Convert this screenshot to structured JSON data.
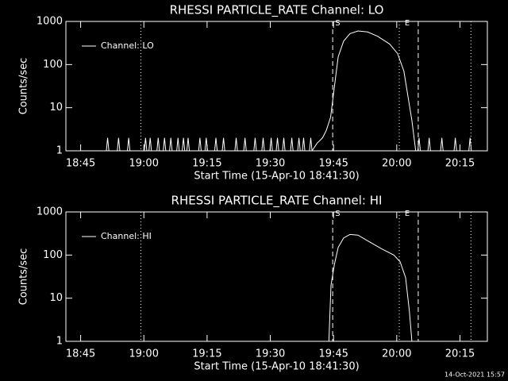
{
  "chart_data": [
    {
      "type": "line",
      "title": "RHESSI PARTICLE_RATE Channel: LO",
      "x_label": "Start Time (15-Apr-10 18:41:30)",
      "y_label": "Counts/sec",
      "x": [
        1121.5,
        1131.1,
        1131.4,
        1131.7,
        1133.7,
        1134,
        1134.3,
        1136.1,
        1136.4,
        1136.7,
        1140.1,
        1140.4,
        1140.7,
        1141.2,
        1141.5,
        1141.8,
        1143.1,
        1143.4,
        1143.7,
        1144.6,
        1144.9,
        1145.2,
        1146.1,
        1146.4,
        1146.7,
        1147.8,
        1148.1,
        1148.4,
        1149.1,
        1149.4,
        1149.7,
        1150.2,
        1150.5,
        1150.8,
        1153,
        1153.3,
        1153.6,
        1154.5,
        1154.8,
        1155.1,
        1156.8,
        1157.1,
        1157.4,
        1158.6,
        1158.9,
        1159.2,
        1161.6,
        1161.9,
        1162.2,
        1163.7,
        1164,
        1164.3,
        1166.1,
        1166.4,
        1166.7,
        1168,
        1168.3,
        1168.6,
        1169.9,
        1170.2,
        1170.5,
        1171.4,
        1171.7,
        1172,
        1172.9,
        1173.2,
        1173.5,
        1174.8,
        1175.1,
        1175.4,
        1176.5,
        1176.8,
        1177.1,
        1177.6,
        1177.9,
        1178.2,
        1179.3,
        1179.6,
        1179.9,
        1181.1,
        1182.4,
        1183.3,
        1184.3,
        1185.2,
        1186.1,
        1187.4,
        1188.9,
        1190.8,
        1193.1,
        1195.5,
        1198.3,
        1200.2,
        1201.7,
        1202.6,
        1203.6,
        1204.5,
        1205,
        1205.3,
        1205.6,
        1207.4,
        1207.7,
        1208,
        1210.4,
        1210.7,
        1211,
        1213.6,
        1213.9,
        1214.2,
        1217.1,
        1217.4,
        1217.7,
        1221.5
      ],
      "series": [
        {
          "name": "Channel: LO",
          "color": "#ffffff",
          "values": [
            1,
            1,
            2,
            1,
            1,
            2,
            1,
            1,
            2,
            1,
            1,
            2,
            1,
            1,
            2,
            1,
            1,
            2,
            1,
            1,
            2,
            1,
            1,
            2,
            1,
            1,
            2,
            1,
            1,
            2,
            1,
            1,
            2,
            1,
            1,
            2,
            1,
            1,
            2,
            1,
            1,
            2,
            1,
            1,
            2,
            1,
            1,
            2,
            1,
            1,
            2,
            1,
            1,
            2,
            1,
            1,
            2,
            1,
            1,
            2,
            1,
            1,
            2,
            1,
            1,
            2,
            1,
            1,
            2,
            1,
            1,
            2,
            1,
            1,
            2,
            1,
            1,
            2,
            1,
            1.5,
            2,
            3,
            6,
            30,
            150,
            350,
            520,
            600,
            570,
            450,
            300,
            180,
            70,
            20,
            5,
            1,
            1,
            2,
            1,
            1,
            2,
            1,
            1,
            2,
            1,
            1,
            2,
            1,
            1,
            2,
            1,
            1
          ]
        }
      ],
      "xlim": [
        1121.5,
        1221.5
      ],
      "xticks": [
        {
          "value": 1125,
          "label": "18:45"
        },
        {
          "value": 1140,
          "label": "19:00"
        },
        {
          "value": 1155,
          "label": "19:15"
        },
        {
          "value": 1170,
          "label": "19:30"
        },
        {
          "value": 1185,
          "label": "19:45"
        },
        {
          "value": 1200,
          "label": "20:00"
        },
        {
          "value": 1215,
          "label": "20:15"
        }
      ],
      "ylim": [
        1,
        1000
      ],
      "yticks": [
        1,
        10,
        100,
        1000
      ],
      "log_y": true,
      "legend": "upper left",
      "vlines": [
        {
          "x": 1139.3,
          "style": "dotted"
        },
        {
          "x": 1184.8,
          "style": "dashed"
        },
        {
          "x": 1200.6,
          "style": "dotted"
        },
        {
          "x": 1205.1,
          "style": "dashed"
        },
        {
          "x": 1217.6,
          "style": "dotted"
        }
      ],
      "annotations": [
        {
          "text": "S",
          "x": 1185.2
        },
        {
          "text": "E",
          "x": 1201.7
        }
      ]
    },
    {
      "type": "line",
      "title": "RHESSI PARTICLE_RATE Channel: HI",
      "x_label": "Start Time (15-Apr-10 18:41:30)",
      "y_label": "Counts/sec",
      "x": [
        1183.9,
        1184.4,
        1185.2,
        1186.1,
        1187.4,
        1188.9,
        1190.8,
        1193.6,
        1196.4,
        1199.3,
        1200.8,
        1202.1,
        1203,
        1203.6
      ],
      "series": [
        {
          "name": "Channel: HI",
          "color": "#ffffff",
          "values": [
            1,
            20,
            60,
            150,
            250,
            300,
            290,
            200,
            140,
            100,
            70,
            30,
            5,
            1
          ]
        }
      ],
      "xlim": [
        1121.5,
        1221.5
      ],
      "xticks": [
        {
          "value": 1125,
          "label": "18:45"
        },
        {
          "value": 1140,
          "label": "19:00"
        },
        {
          "value": 1155,
          "label": "19:15"
        },
        {
          "value": 1170,
          "label": "19:30"
        },
        {
          "value": 1185,
          "label": "19:45"
        },
        {
          "value": 1200,
          "label": "20:00"
        },
        {
          "value": 1215,
          "label": "20:15"
        }
      ],
      "ylim": [
        1,
        1000
      ],
      "yticks": [
        1,
        10,
        100,
        1000
      ],
      "log_y": true,
      "legend": "upper left",
      "vlines": [
        {
          "x": 1139.3,
          "style": "dotted"
        },
        {
          "x": 1184.8,
          "style": "dashed"
        },
        {
          "x": 1200.6,
          "style": "dotted"
        },
        {
          "x": 1205.1,
          "style": "dashed"
        },
        {
          "x": 1217.6,
          "style": "dotted"
        }
      ],
      "annotations": [
        {
          "text": "S",
          "x": 1185.2
        },
        {
          "text": "E",
          "x": 1201.7
        }
      ]
    }
  ],
  "footer": "14-Oct-2021 15:57"
}
